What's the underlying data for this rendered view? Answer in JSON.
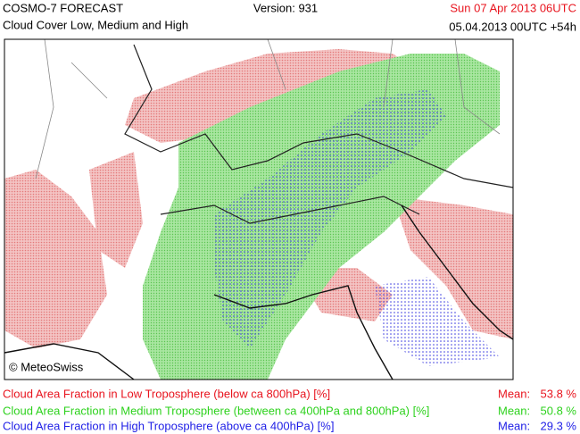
{
  "header": {
    "title": "COSMO-7 FORECAST",
    "subtitle": "Cloud Cover Low, Medium and High",
    "version": "Version: 931",
    "valid_time": "Sun 07 Apr 2013 06UTC",
    "run": "05.04.2013 00UTC +54h"
  },
  "map": {
    "credit": "© MeteoSwiss"
  },
  "legend": [
    {
      "label": "Cloud Area Fraction in Low Troposphere (below ca 800hPa) [%]",
      "mean_label": "Mean:",
      "mean": "53.8 %",
      "color": "#e8141e"
    },
    {
      "label": "Cloud Area Fraction in Medium Troposphere (between ca 400hPa and 800hPa) [%]",
      "mean_label": "Mean:",
      "mean": "50.8 %",
      "color": "#2ed21e"
    },
    {
      "label": "Cloud Area Fraction in High Troposphere (above ca 400hPa) [%]",
      "mean_label": "Mean:",
      "mean": "29.3 %",
      "color": "#1e1ee6"
    }
  ]
}
